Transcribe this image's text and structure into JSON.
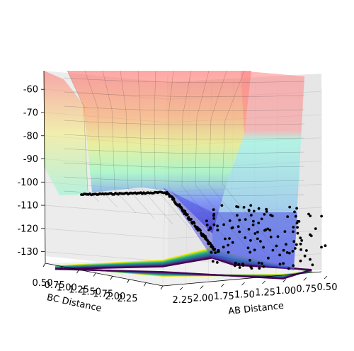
{
  "chart_data": {
    "type": "surface3d",
    "title": "",
    "xlabel": "AB Distance",
    "ylabel": "BC Distance",
    "zlabel": "",
    "xlim": [
      0.5,
      2.4
    ],
    "ylim": [
      0.5,
      2.4
    ],
    "zlim": [
      -135,
      -52
    ],
    "x_ticks": [
      "0.50",
      "0.75",
      "1.00",
      "1.25",
      "1.50",
      "1.75",
      "2.00",
      "2.25"
    ],
    "y_ticks": [
      "0.50",
      "0.75",
      "1.00",
      "1.25",
      "1.50",
      "1.75",
      "2.00",
      "2.25"
    ],
    "z_ticks": [
      "-60",
      "-70",
      "-80",
      "-90",
      "-100",
      "-110",
      "-120",
      "-130"
    ],
    "z_tick_values": [
      -60,
      -70,
      -80,
      -90,
      -100,
      -110,
      -120,
      -130
    ],
    "surface_colormap": "rainbow",
    "contour_colormap": "viridis",
    "scatter_color": "#000000",
    "grid": true,
    "trajectory_points_approx": 300
  }
}
